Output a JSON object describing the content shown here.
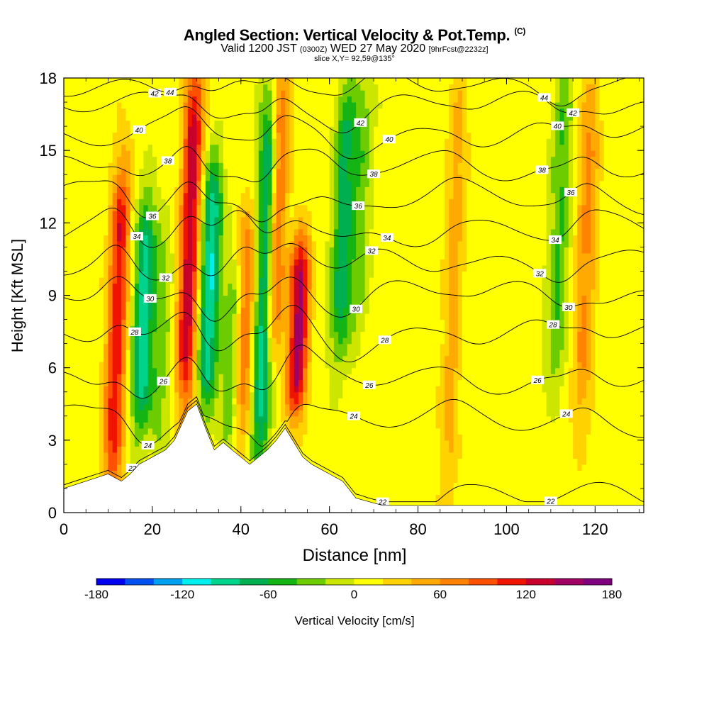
{
  "header": {
    "title": "Angled Section: Vertical Velocity & Pot.Temp.",
    "title_unit": "(C)",
    "valid_prefix": "Valid 1200 JST",
    "valid_utc": "(0300Z)",
    "valid_date": "WED 27 May 2020",
    "forecast": "[9hrFcst@2232z]",
    "slice": "slice X,Y= 92,59@135°"
  },
  "chart_data": {
    "type": "heatmap",
    "title": "Angled Section: Vertical Velocity & Pot.Temp. (C)",
    "xlabel": "Distance [nm]",
    "ylabel": "Height [Kft MSL]",
    "xlim": [
      0,
      131
    ],
    "ylim": [
      0,
      18
    ],
    "x_ticks": [
      "0",
      "20",
      "40",
      "60",
      "80",
      "100",
      "120"
    ],
    "y_ticks": [
      "0",
      "3",
      "6",
      "9",
      "12",
      "15",
      "18"
    ],
    "colorbar": {
      "label": "Vertical Velocity [cm/s]",
      "ticks": [
        "-180",
        "-120",
        "-60",
        "0",
        "60",
        "120",
        "180"
      ],
      "range": [
        -180,
        180
      ],
      "colors": [
        "#0000f0",
        "#0050f0",
        "#00a0f0",
        "#00f0f0",
        "#00d48c",
        "#00b050",
        "#14b414",
        "#6ccc00",
        "#cce600",
        "#ffff00",
        "#ffd200",
        "#ffaa00",
        "#ff8200",
        "#ff5000",
        "#f01400",
        "#c8002c",
        "#a00064",
        "#7f007f"
      ]
    },
    "velocity_features": [
      {
        "x": 12,
        "ymin": 1.5,
        "ymax": 14,
        "value": 110
      },
      {
        "x": 18,
        "ymin": 4,
        "ymax": 12.5,
        "value": -100
      },
      {
        "x": 22,
        "ymin": 3,
        "ymax": 11,
        "value": -40
      },
      {
        "x": 28.5,
        "ymin": 5,
        "ymax": 18,
        "value": 130
      },
      {
        "x": 33,
        "ymin": 5,
        "ymax": 14,
        "value": -110
      },
      {
        "x": 38,
        "ymin": 3,
        "ymax": 10,
        "value": -50
      },
      {
        "x": 41,
        "ymin": 3.5,
        "ymax": 12,
        "value": 80
      },
      {
        "x": 45.5,
        "ymin": 3,
        "ymax": 17,
        "value": -120
      },
      {
        "x": 48,
        "ymin": 7,
        "ymax": 18,
        "value": 100
      },
      {
        "x": 53,
        "ymin": 4.5,
        "ymax": 11,
        "value": 140
      },
      {
        "x": 63,
        "ymin": 7,
        "ymax": 17,
        "value": -80
      },
      {
        "x": 67,
        "ymin": 8,
        "ymax": 18,
        "value": -40
      },
      {
        "x": 88,
        "ymin": 1,
        "ymax": 18,
        "value": 40
      },
      {
        "x": 112,
        "ymin": 6,
        "ymax": 18,
        "value": -50
      },
      {
        "x": 118,
        "ymin": 4,
        "ymax": 18,
        "value": 55
      }
    ],
    "terrain_profile": {
      "x": [
        0,
        5,
        10,
        13,
        15,
        17,
        20,
        23,
        25,
        28,
        30,
        32,
        34,
        36,
        38,
        40,
        42,
        44,
        46,
        48,
        50,
        52,
        54,
        56,
        58,
        60,
        63,
        66,
        70,
        72,
        131
      ],
      "height_kft": [
        1.0,
        1.3,
        1.6,
        1.3,
        1.6,
        2.0,
        2.3,
        2.6,
        3.0,
        4.2,
        4.5,
        3.5,
        2.6,
        2.9,
        2.6,
        2.3,
        2.0,
        2.3,
        2.6,
        3.0,
        3.5,
        2.9,
        2.3,
        2.0,
        1.8,
        1.6,
        1.3,
        0.6,
        0.4,
        0.3,
        0.3
      ]
    },
    "theta_contours": [
      {
        "label": "22",
        "base_kft": 0.6
      },
      {
        "label": "24",
        "base_kft": 3.8
      },
      {
        "label": "26",
        "base_kft": 5.6
      },
      {
        "label": "28",
        "base_kft": 7.4
      },
      {
        "label": "30",
        "base_kft": 9.0
      },
      {
        "label": "32",
        "base_kft": 10.4
      },
      {
        "label": "34",
        "base_kft": 11.7
      },
      {
        "label": "36",
        "base_kft": 13.0
      },
      {
        "label": "38",
        "base_kft": 14.4
      },
      {
        "label": "40",
        "base_kft": 15.7
      },
      {
        "label": "42",
        "base_kft": 16.8
      },
      {
        "label": "44",
        "base_kft": 17.7
      }
    ]
  }
}
